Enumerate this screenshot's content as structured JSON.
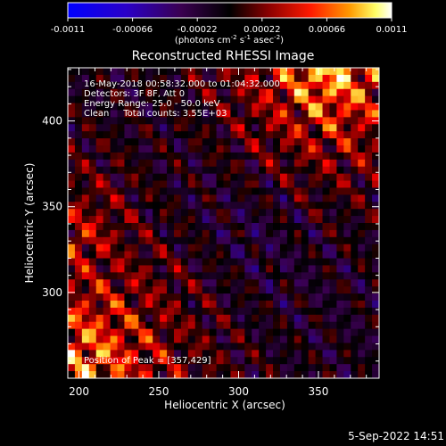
{
  "colorbar": {
    "ticks": [
      "-0.0011",
      "-0.00066",
      "-0.00022",
      "0.00022",
      "0.00066",
      "0.0011"
    ],
    "tick_values": [
      -0.0011,
      -0.00066,
      -0.00022,
      0.00022,
      0.00066,
      0.0011
    ],
    "unit_main": "(photons cm",
    "unit_exp1": "-2",
    "unit_mid": " s",
    "unit_exp2": "-1",
    "unit_asec": " asec",
    "unit_exp3": "-2",
    "unit_end": ")",
    "colors": [
      "#0000ff",
      "#2200aa",
      "#3a0050",
      "#000000",
      "#7a0000",
      "#ff0000",
      "#ff8800",
      "#ffff66",
      "#ffffff"
    ]
  },
  "chart_data": {
    "type": "heatmap",
    "title": "Reconstructed RHESSI Image",
    "xlabel": "Heliocentric X (arcsec)",
    "ylabel": "Heliocentric Y (arcsec)",
    "xlim": [
      193,
      388
    ],
    "ylim": [
      250,
      431
    ],
    "xticks": [
      200,
      250,
      300,
      350
    ],
    "yticks": [
      300,
      350,
      400
    ],
    "xtick_labels": [
      "200",
      "250",
      "300",
      "350"
    ],
    "ytick_labels": [
      "300",
      "350",
      "400"
    ],
    "vmin": -0.0011,
    "vmax": 0.0011,
    "info_lines": [
      "16-May-2018 00:58:32.000 to 01:04:32.000",
      "Detectors: 3F 8F, Att 0",
      "Energy Range: 25.0 - 50.0 keV",
      "Clean     Total counts: 3.55E+03"
    ],
    "peak_label": "Position of Peak = [357,429]",
    "peak": [
      357,
      429
    ]
  },
  "footer": {
    "date": "5-Sep-2022 14:51"
  }
}
